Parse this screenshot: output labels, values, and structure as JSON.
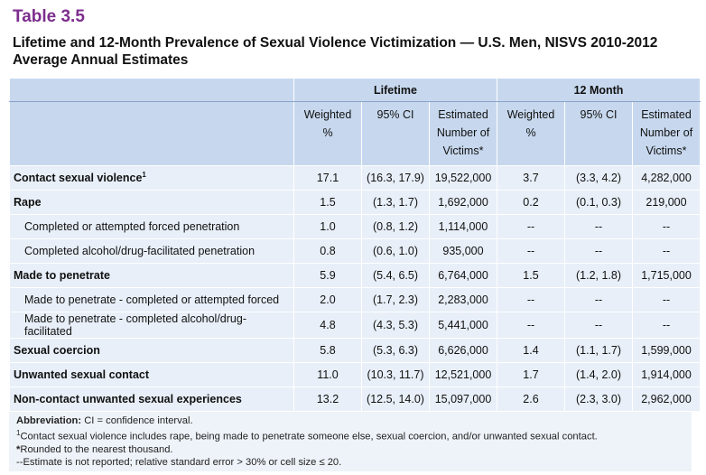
{
  "header": {
    "title": "Table 3.5",
    "subtitle": "Lifetime and 12-Month Prevalence of Sexual Violence Victimization — U.S. Men, NISVS 2010-2012 Average Annual Estimates"
  },
  "table": {
    "column_groups": [
      "Lifetime",
      "12 Month"
    ],
    "columns": [
      "Weighted %",
      "95% CI",
      "Estimated Number of Victims*",
      "Weighted %",
      "95% CI",
      "Estimated Number of Victims*"
    ],
    "rows": [
      {
        "label": "Contact sexual violence",
        "note": "1",
        "cells": [
          "17.1",
          "(16.3, 17.9)",
          "19,522,000",
          "3.7",
          "(3.3, 4.2)",
          "4,282,000"
        ]
      },
      {
        "label": "Rape",
        "cells": [
          "1.5",
          "(1.3, 1.7)",
          "1,692,000",
          "0.2",
          "(0.1, 0.3)",
          "219,000"
        ],
        "subrows": [
          {
            "label": "Completed or attempted forced penetration",
            "cells": [
              "1.0",
              "(0.8, 1.2)",
              "1,114,000",
              "--",
              "--",
              "--"
            ]
          },
          {
            "label": "Completed alcohol/drug-facilitated penetration",
            "cells": [
              "0.8",
              "(0.6, 1.0)",
              "935,000",
              "--",
              "--",
              "--"
            ]
          }
        ]
      },
      {
        "label": "Made to penetrate",
        "cells": [
          "5.9",
          "(5.4, 6.5)",
          "6,764,000",
          "1.5",
          "(1.2, 1.8)",
          "1,715,000"
        ],
        "subrows": [
          {
            "label": "Made to penetrate - completed or attempted forced",
            "cells": [
              "2.0",
              "(1.7, 2.3)",
              "2,283,000",
              "--",
              "--",
              "--"
            ]
          },
          {
            "label": "Made to penetrate - completed alcohol/drug-facilitated",
            "cells": [
              "4.8",
              "(4.3, 5.3)",
              "5,441,000",
              "--",
              "--",
              "--"
            ]
          }
        ]
      },
      {
        "label": "Sexual coercion",
        "cells": [
          "5.8",
          "(5.3, 6.3)",
          "6,626,000",
          "1.4",
          "(1.1, 1.7)",
          "1,599,000"
        ]
      },
      {
        "label": "Unwanted sexual contact",
        "cells": [
          "11.0",
          "(10.3, 11.7)",
          "12,521,000",
          "1.7",
          "(1.4, 2.0)",
          "1,914,000"
        ]
      },
      {
        "label": "Non-contact unwanted sexual experiences",
        "cells": [
          "13.2",
          "(12.5, 14.0)",
          "15,097,000",
          "2.6",
          "(2.3, 3.0)",
          "2,962,000"
        ]
      }
    ]
  },
  "footnotes": [
    {
      "label": "Abbreviation:",
      "text": " CI = confidence interval."
    },
    {
      "marker": "1",
      "text": "Contact sexual violence includes rape, being made to penetrate someone else, sexual coercion, and/or unwanted sexual contact."
    },
    {
      "marker": "*",
      "text": "Rounded to the nearest thousand."
    },
    {
      "text": "--Estimate is not reported; relative standard error > 30% or cell size ≤ 20."
    }
  ]
}
